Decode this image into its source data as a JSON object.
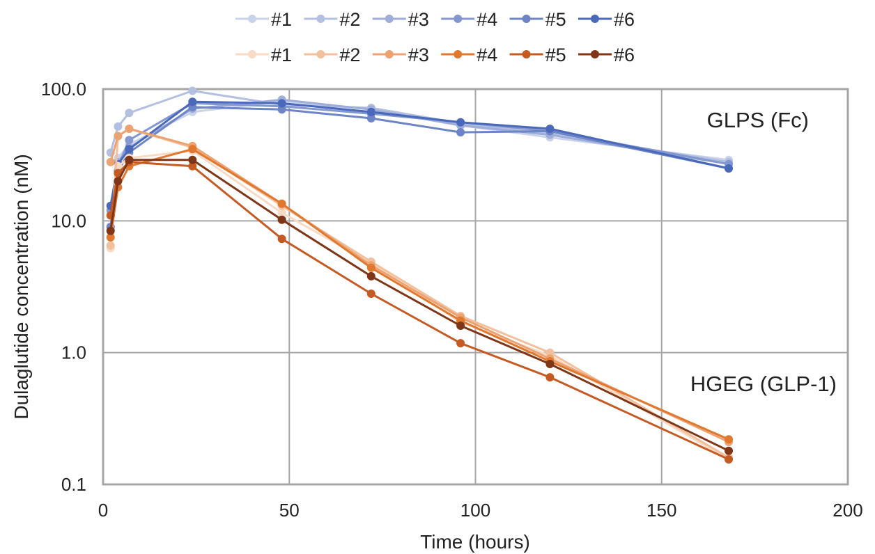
{
  "chart_data": {
    "type": "line",
    "xlabel": "Time (hours)",
    "ylabel": "Dulaglutide concentration (nM)",
    "yscale": "log",
    "xlim": [
      0,
      200
    ],
    "ylim": [
      0.1,
      100
    ],
    "x_ticks": [
      0,
      50,
      100,
      150,
      200
    ],
    "y_ticks": [
      0.1,
      1,
      10,
      100
    ],
    "x_tick_labels": [
      "0",
      "50",
      "100",
      "150",
      "200"
    ],
    "y_tick_labels": [
      "0.1",
      "1.0",
      "10.0",
      "100.0"
    ],
    "grid": true,
    "legend_position": "top",
    "annotations": [
      {
        "text": "GLPS (Fc)",
        "near_x": 163,
        "near_y": 55
      },
      {
        "text": "HGEG (GLP-1)",
        "near_x": 162,
        "near_y": 0.65
      }
    ],
    "x": [
      2,
      4,
      7,
      24,
      48,
      72,
      96,
      120,
      168
    ],
    "series": [
      {
        "group": "GLPS",
        "name": "#1",
        "color": "#cbd3ea",
        "values": [
          8.5,
          30,
          38,
          67,
          81,
          70,
          53,
          43,
          29
        ]
      },
      {
        "group": "GLPS",
        "name": "#2",
        "color": "#b4c0e2",
        "values": [
          33,
          52,
          66,
          97,
          76,
          72,
          55,
          46,
          28
        ]
      },
      {
        "group": "GLPS",
        "name": "#3",
        "color": "#9eaed9",
        "values": [
          9,
          28,
          36,
          71,
          83,
          70,
          53,
          45,
          27
        ]
      },
      {
        "group": "GLPS",
        "name": "#4",
        "color": "#8398d0",
        "values": [
          12,
          26,
          41,
          78,
          74,
          65,
          56,
          48,
          27
        ]
      },
      {
        "group": "GLPS",
        "name": "#5",
        "color": "#6d84c6",
        "values": [
          9,
          24,
          33,
          73,
          70,
          60,
          47,
          48,
          25
        ]
      },
      {
        "group": "GLPS",
        "name": "#6",
        "color": "#4a69bb",
        "values": [
          13,
          27,
          35,
          80,
          78,
          67,
          56,
          50,
          25
        ]
      },
      {
        "group": "HGEG",
        "name": "#1",
        "color": "#f8dac5",
        "values": [
          6.2,
          26,
          30,
          34,
          11.5,
          4.8,
          1.7,
          0.95,
          0.155
        ]
      },
      {
        "group": "HGEG",
        "name": "#2",
        "color": "#f3c09d",
        "values": [
          6.5,
          44,
          50,
          36,
          13,
          4.9,
          1.9,
          1.0,
          0.16
        ]
      },
      {
        "group": "HGEG",
        "name": "#3",
        "color": "#eda271",
        "values": [
          28,
          44,
          50,
          37,
          13.5,
          4.6,
          1.85,
          0.9,
          0.21
        ]
      },
      {
        "group": "HGEG",
        "name": "#4",
        "color": "#e0782f",
        "values": [
          7.5,
          18,
          26,
          35,
          13.5,
          4.4,
          1.75,
          0.86,
          0.22
        ]
      },
      {
        "group": "HGEG",
        "name": "#5",
        "color": "#c55a23",
        "values": [
          11,
          23,
          28,
          26,
          7.3,
          2.8,
          1.18,
          0.65,
          0.155
        ]
      },
      {
        "group": "HGEG",
        "name": "#6",
        "color": "#7e3616",
        "values": [
          8.4,
          20,
          29,
          29,
          10.2,
          3.8,
          1.6,
          0.82,
          0.18
        ]
      }
    ]
  }
}
